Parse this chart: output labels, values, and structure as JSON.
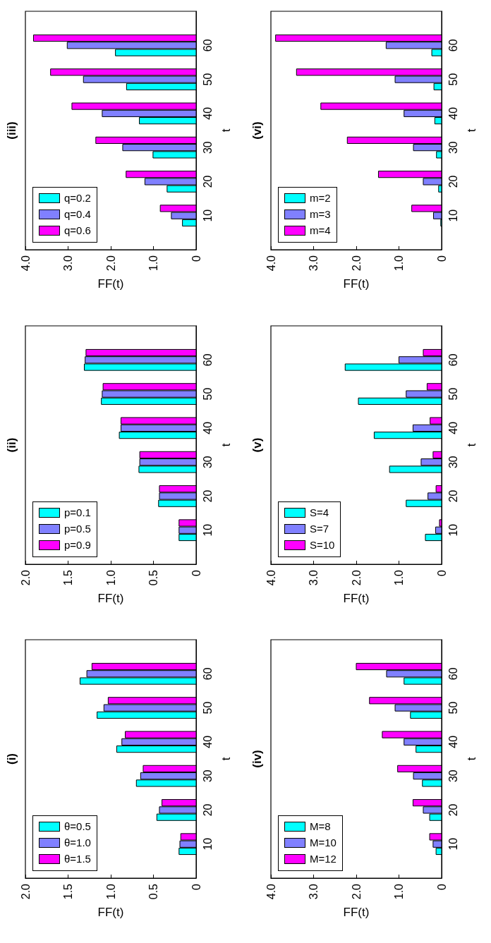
{
  "chart_data": [
    {
      "type": "bar",
      "orientation": "horizontal",
      "title": "(i)",
      "xlabel": "FF(t)",
      "ylabel": "t",
      "x": [
        10,
        20,
        30,
        40,
        50,
        60
      ],
      "ylim": [
        0,
        70
      ],
      "yticks": [
        10,
        20,
        30,
        40,
        50,
        60
      ],
      "xlim": [
        2,
        0
      ],
      "xticks": [
        {
          "value": 2,
          "label": "2.0"
        },
        1.5,
        {
          "value": 1,
          "label": "1.0"
        },
        0.5,
        0
      ],
      "legend": "bottom left",
      "grid": false,
      "series": [
        {
          "name": "θ=0.5",
          "color": "#00ffff",
          "values": [
            0.2,
            0.46,
            0.7,
            0.93,
            1.16,
            1.36
          ]
        },
        {
          "name": "θ=1.0",
          "color": "#8080ff",
          "values": [
            0.19,
            0.43,
            0.65,
            0.87,
            1.08,
            1.28
          ]
        },
        {
          "name": "θ=1.5",
          "color": "#ff00ff",
          "values": [
            0.18,
            0.4,
            0.62,
            0.83,
            1.03,
            1.22
          ]
        }
      ]
    },
    {
      "type": "bar",
      "orientation": "horizontal",
      "title": "(ii)",
      "xlabel": "FF(t)",
      "ylabel": "t",
      "x": [
        10,
        20,
        30,
        40,
        50,
        60
      ],
      "ylim": [
        0,
        70
      ],
      "yticks": [
        10,
        20,
        30,
        40,
        50,
        60
      ],
      "xlim": [
        2,
        0
      ],
      "xticks": [
        {
          "value": 2,
          "label": "2.0"
        },
        1.5,
        {
          "value": 1,
          "label": "1.0"
        },
        0.5,
        0
      ],
      "legend": "bottom left",
      "grid": false,
      "series": [
        {
          "name": "p=0.1",
          "color": "#00ffff",
          "values": [
            0.2,
            0.44,
            0.67,
            0.9,
            1.11,
            1.31
          ]
        },
        {
          "name": "p=0.5",
          "color": "#8080ff",
          "values": [
            0.2,
            0.43,
            0.66,
            0.88,
            1.1,
            1.3
          ]
        },
        {
          "name": "p=0.9",
          "color": "#ff00ff",
          "values": [
            0.2,
            0.43,
            0.66,
            0.88,
            1.09,
            1.29
          ]
        }
      ]
    },
    {
      "type": "bar",
      "orientation": "horizontal",
      "title": "(iii)",
      "xlabel": "FF(t)",
      "ylabel": "t",
      "x": [
        10,
        20,
        30,
        40,
        50,
        60
      ],
      "ylim": [
        0,
        70
      ],
      "yticks": [
        10,
        20,
        30,
        40,
        50,
        60
      ],
      "xlim": [
        4,
        0
      ],
      "xticks": [
        {
          "value": 4,
          "label": "4.0"
        },
        {
          "value": 3,
          "label": "3.0"
        },
        {
          "value": 2,
          "label": "2.0"
        },
        {
          "value": 1,
          "label": "1.0"
        },
        0
      ],
      "legend": "bottom left",
      "grid": false,
      "series": [
        {
          "name": "q=0.2",
          "color": "#00ffff",
          "values": [
            0.32,
            0.68,
            1.01,
            1.33,
            1.63,
            1.89
          ]
        },
        {
          "name": "q=0.4",
          "color": "#8080ff",
          "values": [
            0.58,
            1.2,
            1.72,
            2.2,
            2.64,
            3.02
          ]
        },
        {
          "name": "q=0.6",
          "color": "#ff00ff",
          "values": [
            0.84,
            1.64,
            2.35,
            2.91,
            3.41,
            3.81
          ]
        }
      ]
    },
    {
      "type": "bar",
      "orientation": "horizontal",
      "title": "(iv)",
      "xlabel": "FF(t)",
      "ylabel": "t",
      "x": [
        10,
        20,
        30,
        40,
        50,
        60
      ],
      "ylim": [
        0,
        70
      ],
      "yticks": [
        10,
        20,
        30,
        40,
        50,
        60
      ],
      "xlim": [
        4,
        0
      ],
      "xticks": [
        {
          "value": 4,
          "label": "4.0"
        },
        {
          "value": 3,
          "label": "3.0"
        },
        {
          "value": 2,
          "label": "2.0"
        },
        {
          "value": 1,
          "label": "1.0"
        },
        0
      ],
      "legend": "bottom left",
      "grid": false,
      "series": [
        {
          "name": "M=8",
          "color": "#00ffff",
          "values": [
            0.13,
            0.28,
            0.45,
            0.6,
            0.73,
            0.88
          ]
        },
        {
          "name": "M=10",
          "color": "#8080ff",
          "values": [
            0.2,
            0.43,
            0.66,
            0.88,
            1.09,
            1.29
          ]
        },
        {
          "name": "M=12",
          "color": "#ff00ff",
          "values": [
            0.28,
            0.67,
            1.03,
            1.39,
            1.69,
            2.0
          ]
        }
      ]
    },
    {
      "type": "bar",
      "orientation": "horizontal",
      "title": "(v)",
      "xlabel": "FF(t)",
      "ylabel": "t",
      "x": [
        10,
        20,
        30,
        40,
        50,
        60
      ],
      "ylim": [
        0,
        70
      ],
      "yticks": [
        10,
        20,
        30,
        40,
        50,
        60
      ],
      "xlim": [
        4,
        0
      ],
      "xticks": [
        {
          "value": 4,
          "label": "4.0"
        },
        {
          "value": 3,
          "label": "3.0"
        },
        {
          "value": 2,
          "label": "2.0"
        },
        {
          "value": 1,
          "label": "1.0"
        },
        0
      ],
      "legend": "bottom left",
      "grid": false,
      "series": [
        {
          "name": "S=4",
          "color": "#00ffff",
          "values": [
            0.38,
            0.83,
            1.22,
            1.58,
            1.95,
            2.26
          ]
        },
        {
          "name": "S=7",
          "color": "#8080ff",
          "values": [
            0.14,
            0.32,
            0.48,
            0.67,
            0.83,
            1.0
          ]
        },
        {
          "name": "S=10",
          "color": "#ff00ff",
          "values": [
            0.05,
            0.13,
            0.2,
            0.27,
            0.34,
            0.43
          ]
        }
      ]
    },
    {
      "type": "bar",
      "orientation": "horizontal",
      "title": "(vi)",
      "xlabel": "FF(t)",
      "ylabel": "t",
      "x": [
        10,
        20,
        30,
        40,
        50,
        60
      ],
      "ylim": [
        0,
        70
      ],
      "yticks": [
        10,
        20,
        30,
        40,
        50,
        60
      ],
      "xlim": [
        4,
        0
      ],
      "xticks": [
        {
          "value": 4,
          "label": "4.0"
        },
        {
          "value": 3,
          "label": "3.0"
        },
        {
          "value": 2,
          "label": "2.0"
        },
        {
          "value": 1,
          "label": "1.0"
        },
        0
      ],
      "legend": "bottom left",
      "grid": false,
      "series": [
        {
          "name": "m=2",
          "color": "#00ffff",
          "values": [
            0.02,
            0.07,
            0.12,
            0.16,
            0.18,
            0.23
          ]
        },
        {
          "name": "m=3",
          "color": "#8080ff",
          "values": [
            0.19,
            0.43,
            0.66,
            0.88,
            1.09,
            1.3
          ]
        },
        {
          "name": "m=4",
          "color": "#ff00ff",
          "values": [
            0.7,
            1.48,
            2.21,
            2.83,
            3.4,
            3.89
          ]
        }
      ]
    }
  ]
}
